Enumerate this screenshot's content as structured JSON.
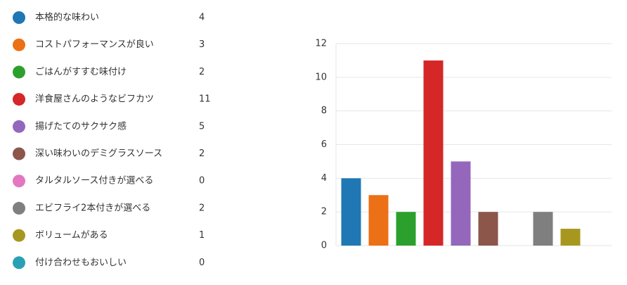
{
  "chart_data": {
    "type": "bar",
    "categories": [
      "本格的な味わい",
      "コストパフォーマンスが良い",
      "ごはんがすすむ味付け",
      "洋食屋さんのようなビフカツ",
      "揚げたてのサクサク感",
      "深い味わいのデミグラスソース",
      "タルタルソース付きが選べる",
      "エビフライ2本付きが選べる",
      "ボリュームがある",
      "付け合わせもおいしい"
    ],
    "values": [
      4,
      3,
      2,
      11,
      5,
      2,
      0,
      2,
      1,
      0
    ],
    "colors": [
      "#1f77b4",
      "#ec7016",
      "#2ca02c",
      "#d62728",
      "#9467bd",
      "#8c564b",
      "#e377c2",
      "#7f7f7f",
      "#a8971f",
      "#2aa0b5"
    ],
    "ylim": [
      0,
      12
    ],
    "yticks": [
      0,
      2,
      4,
      6,
      8,
      10,
      12
    ],
    "grid": true
  }
}
